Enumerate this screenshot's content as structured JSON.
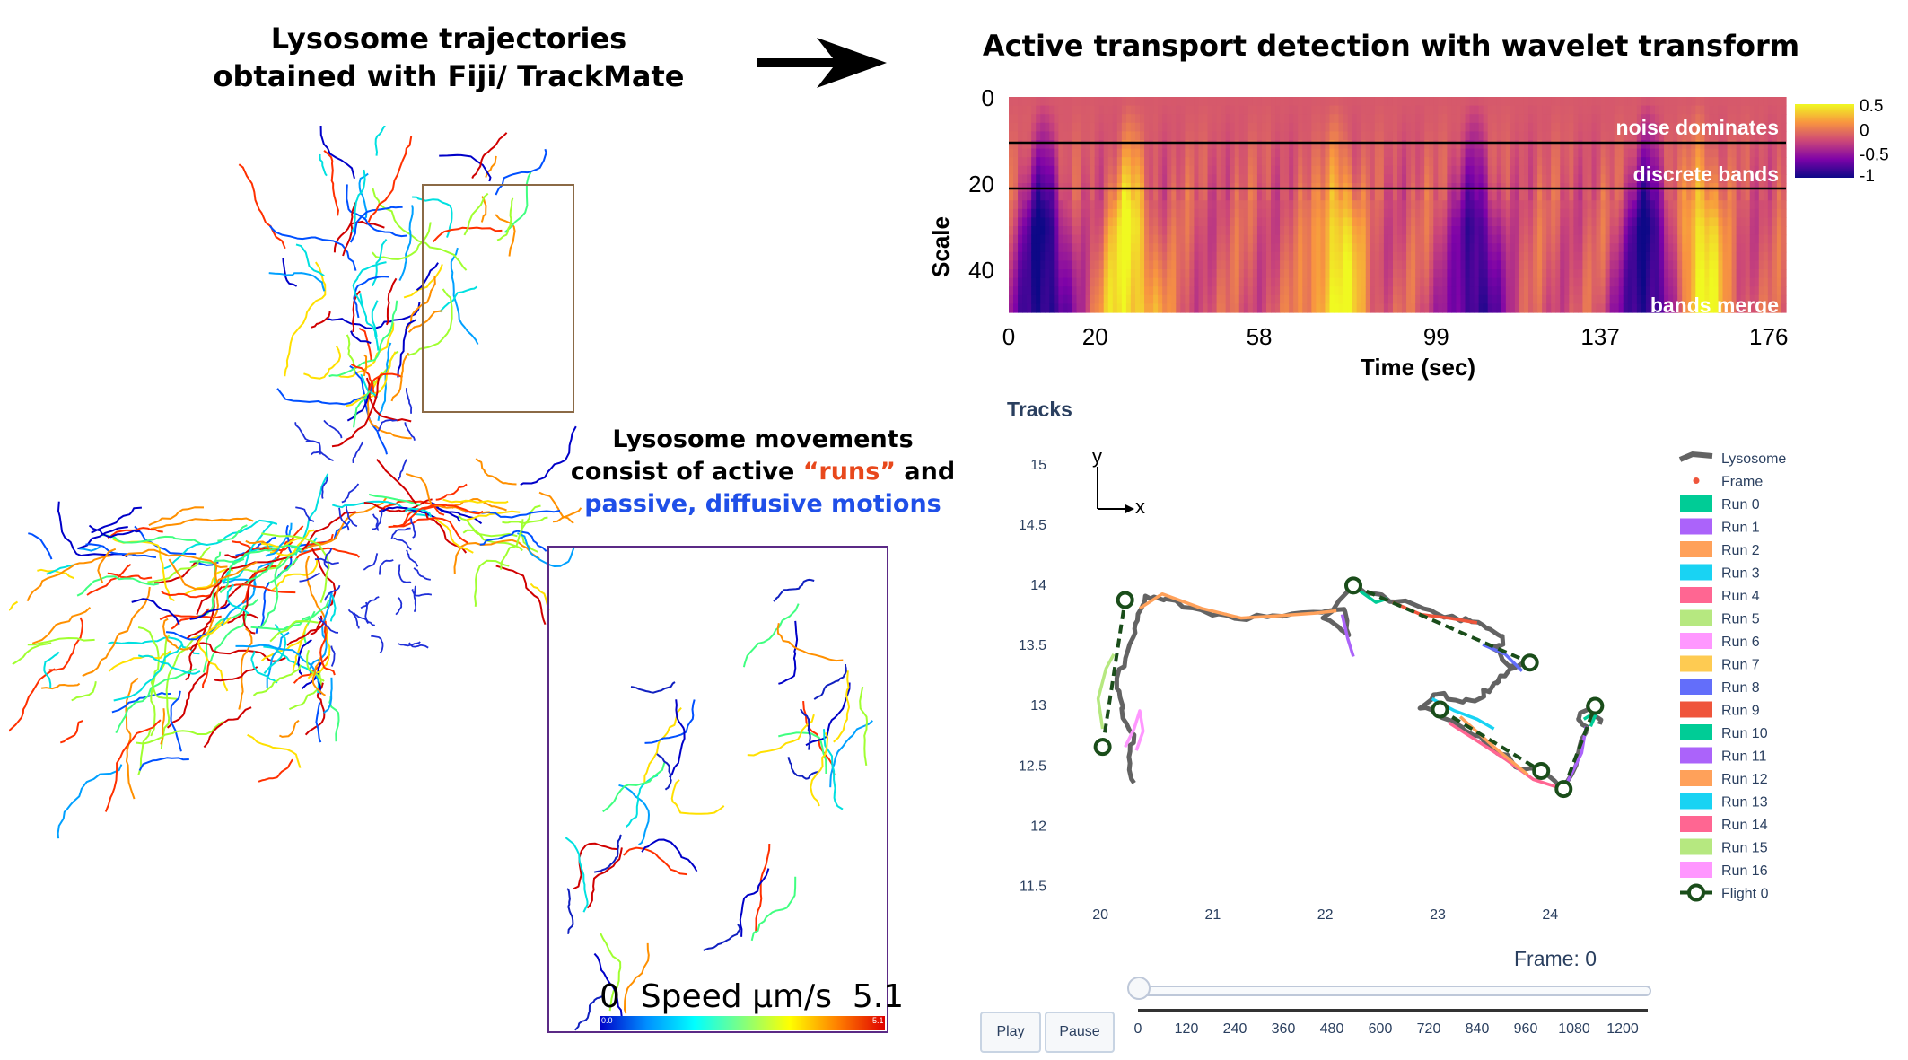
{
  "left_title": {
    "line1": "Lysosome trajectories",
    "line2": "obtained with Fiji/ TrackMate"
  },
  "right_title": "Active transport detection with wavelet transform",
  "message": {
    "line1": "Lysosome movements",
    "line2_prefix": "consist of active ",
    "line2_runs": "“runs”",
    "line2_suffix": " and",
    "line3": "passive, diffusive motions"
  },
  "speed_scale": {
    "label": "0  Speed μm/s  5.1",
    "min_label": "0.0",
    "max_label": "5.1"
  },
  "colors": {
    "runs": "#e8481c",
    "passive": "#1f4fe8",
    "box_inset": "#8b6a46",
    "inset_border": "#5b2a86"
  },
  "chart_data": [
    {
      "type": "heatmap",
      "ylabel": "Scale",
      "xlabel": "Time (sec)",
      "y_ticks": [
        "0",
        "20",
        "40"
      ],
      "x_ticks": [
        "0",
        "20",
        "58",
        "99",
        "137",
        "176"
      ],
      "colorbar": {
        "ticks": [
          "0.5",
          "0",
          "-0.5",
          "-1"
        ],
        "range": [
          -1,
          0.5
        ]
      },
      "band_lines_scale": [
        10,
        20
      ],
      "annotations": [
        "noise dominates",
        "discrete bands",
        "bands merge"
      ],
      "notable_columns": [
        {
          "time": 8,
          "value": -1.0
        },
        {
          "time": 28,
          "value": 0.5
        },
        {
          "time": 76,
          "value": 0.5
        },
        {
          "time": 108,
          "value": -0.9
        },
        {
          "time": 148,
          "value": -1.0
        },
        {
          "time": 160,
          "value": 0.5
        }
      ]
    },
    {
      "type": "line",
      "title": "Tracks",
      "axes_glyph": {
        "y": "y",
        "x": "x"
      },
      "x_ticks": [
        "20",
        "21",
        "22",
        "23",
        "24"
      ],
      "y_ticks": [
        "15",
        "14.5",
        "14",
        "13.5",
        "13",
        "12.5",
        "12",
        "11.5"
      ],
      "xlim": [
        19.6,
        24.9
      ],
      "ylim": [
        11.25,
        15.2
      ],
      "legend": [
        "Lysosome",
        "Frame",
        "Run 0",
        "Run 1",
        "Run 2",
        "Run 3",
        "Run 4",
        "Run 5",
        "Run 6",
        "Run 7",
        "Run 8",
        "Run 9",
        "Run 10",
        "Run 11",
        "Run 12",
        "Run 13",
        "Run 14",
        "Run 15",
        "Run 16",
        "Flight 0"
      ],
      "legend_colors": [
        "#636363",
        "#ef553b",
        "#00cc96",
        "#ab63fa",
        "#ffa15a",
        "#19d3f3",
        "#ff6692",
        "#b6e880",
        "#ff97ff",
        "#fecb52",
        "#636efa",
        "#ef553b",
        "#00cc96",
        "#ab63fa",
        "#ffa15a",
        "#19d3f3",
        "#ff6692",
        "#b6e880",
        "#ff97ff",
        "#1a4d1a"
      ],
      "flight_points": [
        [
          20.02,
          12.65
        ],
        [
          20.22,
          13.87
        ],
        [
          22.25,
          13.99
        ],
        [
          23.82,
          13.35
        ],
        [
          23.02,
          12.96
        ],
        [
          23.92,
          12.45
        ],
        [
          24.12,
          12.3
        ],
        [
          24.4,
          12.99
        ]
      ],
      "lysosome_path": [
        [
          20.3,
          12.35
        ],
        [
          20.25,
          12.55
        ],
        [
          20.28,
          12.75
        ],
        [
          20.2,
          12.95
        ],
        [
          20.15,
          13.15
        ],
        [
          20.22,
          13.4
        ],
        [
          20.3,
          13.6
        ],
        [
          20.35,
          13.75
        ],
        [
          20.4,
          13.88
        ],
        [
          20.6,
          13.87
        ],
        [
          20.9,
          13.78
        ],
        [
          21.2,
          13.72
        ],
        [
          21.55,
          13.74
        ],
        [
          21.9,
          13.76
        ],
        [
          22.15,
          13.8
        ],
        [
          22.2,
          13.6
        ],
        [
          22.0,
          13.7
        ],
        [
          22.25,
          13.99
        ],
        [
          22.5,
          13.9
        ],
        [
          22.75,
          13.82
        ],
        [
          23.0,
          13.75
        ],
        [
          23.25,
          13.7
        ],
        [
          23.45,
          13.65
        ],
        [
          23.6,
          13.55
        ],
        [
          23.5,
          13.45
        ],
        [
          23.62,
          13.33
        ],
        [
          23.82,
          13.35
        ],
        [
          23.6,
          13.25
        ],
        [
          23.5,
          13.15
        ],
        [
          23.35,
          13.05
        ],
        [
          23.2,
          13.0
        ],
        [
          23.0,
          13.1
        ],
        [
          22.85,
          12.98
        ],
        [
          23.1,
          12.88
        ],
        [
          23.3,
          12.75
        ],
        [
          23.55,
          12.6
        ],
        [
          23.75,
          12.48
        ],
        [
          23.92,
          12.45
        ],
        [
          24.12,
          12.3
        ],
        [
          24.25,
          12.55
        ],
        [
          24.32,
          12.78
        ],
        [
          24.25,
          12.9
        ],
        [
          24.4,
          12.99
        ],
        [
          24.45,
          12.85
        ]
      ],
      "runs": [
        {
          "color": "#ffa15a",
          "points": [
            [
              20.35,
              13.8
            ],
            [
              20.55,
              13.92
            ],
            [
              20.9,
              13.8
            ],
            [
              21.25,
              13.72
            ],
            [
              21.6,
              13.74
            ],
            [
              21.9,
              13.76
            ],
            [
              22.1,
              13.78
            ]
          ]
        },
        {
          "color": "#b6e880",
          "points": [
            [
              20.02,
              12.8
            ],
            [
              19.98,
              13.05
            ],
            [
              20.05,
              13.3
            ],
            [
              20.12,
              13.42
            ]
          ]
        },
        {
          "color": "#ff97ff",
          "points": [
            [
              20.22,
              12.65
            ],
            [
              20.3,
              12.8
            ],
            [
              20.35,
              12.95
            ],
            [
              20.38,
              12.78
            ],
            [
              20.32,
              12.62
            ]
          ]
        },
        {
          "color": "#00cc96",
          "points": [
            [
              22.3,
              13.95
            ],
            [
              22.45,
              13.85
            ],
            [
              22.55,
              13.88
            ]
          ]
        },
        {
          "color": "#ef553b",
          "points": [
            [
              22.6,
              13.85
            ],
            [
              22.85,
              13.75
            ],
            [
              23.1,
              13.72
            ],
            [
              23.35,
              13.68
            ]
          ]
        },
        {
          "color": "#636efa",
          "points": [
            [
              23.4,
              13.5
            ],
            [
              23.6,
              13.42
            ],
            [
              23.75,
              13.28
            ]
          ]
        },
        {
          "color": "#ab63fa",
          "points": [
            [
              22.15,
              13.75
            ],
            [
              22.2,
              13.55
            ],
            [
              22.25,
              13.4
            ]
          ]
        },
        {
          "color": "#19d3f3",
          "points": [
            [
              22.95,
              13.05
            ],
            [
              23.15,
              12.95
            ],
            [
              23.35,
              12.88
            ],
            [
              23.5,
              12.8
            ]
          ]
        },
        {
          "color": "#ff6692",
          "points": [
            [
              23.1,
              12.85
            ],
            [
              23.35,
              12.7
            ],
            [
              23.6,
              12.55
            ],
            [
              23.85,
              12.38
            ],
            [
              24.05,
              12.32
            ]
          ]
        },
        {
          "color": "#ffa15a",
          "points": [
            [
              23.2,
              12.9
            ],
            [
              23.5,
              12.65
            ],
            [
              23.8,
              12.42
            ]
          ]
        },
        {
          "color": "#ab63fa",
          "points": [
            [
              24.15,
              12.35
            ],
            [
              24.28,
              12.6
            ],
            [
              24.32,
              12.82
            ]
          ]
        },
        {
          "color": "#00cc96",
          "points": [
            [
              24.3,
              12.88
            ],
            [
              24.42,
              12.95
            ],
            [
              24.36,
              12.82
            ]
          ]
        }
      ],
      "slider": {
        "label": "Frame: 0",
        "ticks": [
          "0",
          "120",
          "240",
          "360",
          "480",
          "600",
          "720",
          "840",
          "960",
          "1080",
          "1200"
        ],
        "value": 0
      },
      "buttons": {
        "play": "Play",
        "pause": "Pause"
      }
    }
  ]
}
